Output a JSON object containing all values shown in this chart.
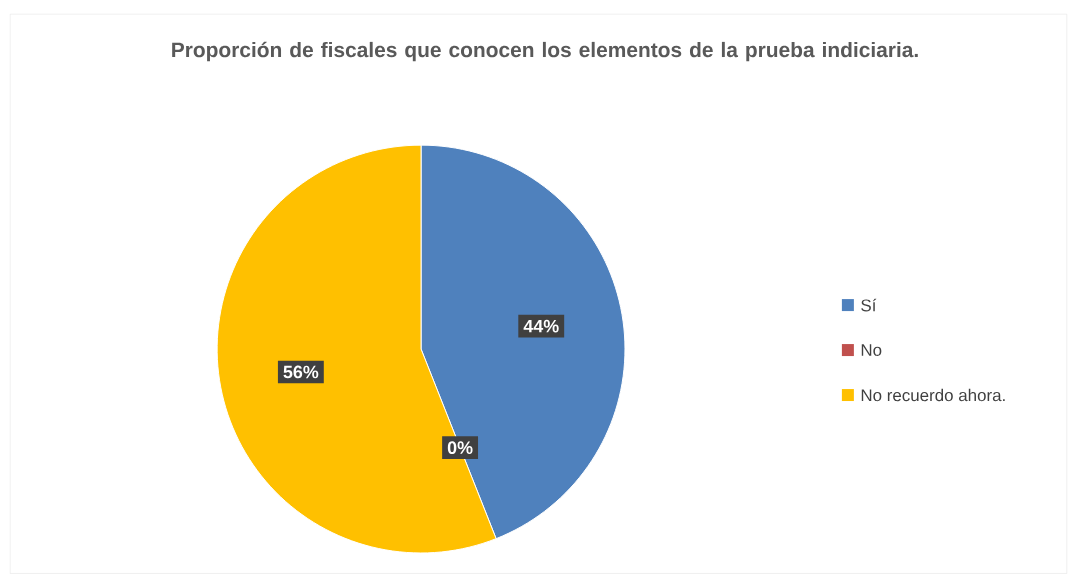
{
  "chart_data": {
    "type": "pie",
    "title": "Proporción de fiscales que conocen los elementos de la prueba indiciaria.",
    "categories": [
      "Sí",
      "No",
      "No recuerdo ahora."
    ],
    "values": [
      44,
      0,
      56
    ],
    "colors": [
      "#4f81bd",
      "#c0504d",
      "#ffc000"
    ],
    "value_labels": [
      "44%",
      "0%",
      "56%"
    ],
    "legend": "right"
  }
}
